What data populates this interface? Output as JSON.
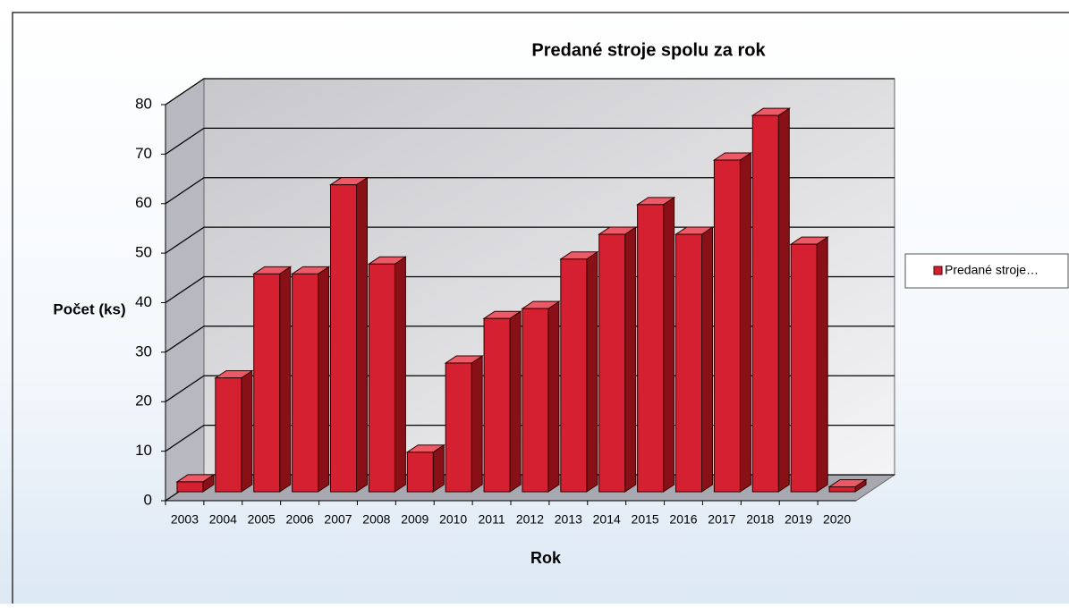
{
  "chart_data": {
    "type": "bar3d",
    "title": "Predané stroje spolu za rok",
    "x_label": "Rok",
    "y_label": "Počet (ks)",
    "categories": [
      "2003",
      "2004",
      "2005",
      "2006",
      "2007",
      "2008",
      "2009",
      "2010",
      "2011",
      "2012",
      "2013",
      "2014",
      "2015",
      "2016",
      "2017",
      "2018",
      "2019",
      "2020"
    ],
    "series": [
      {
        "name": "Predané stroje…",
        "color": "#d42030",
        "values": [
          2,
          23,
          44,
          44,
          62,
          46,
          8,
          26,
          35,
          37,
          47,
          52,
          58,
          52,
          67,
          76,
          50,
          1
        ]
      }
    ],
    "ylim": [
      0,
      80
    ],
    "yticks": [
      0,
      10,
      20,
      30,
      40,
      50,
      60,
      70,
      80
    ],
    "grid": true,
    "legend": "right"
  }
}
